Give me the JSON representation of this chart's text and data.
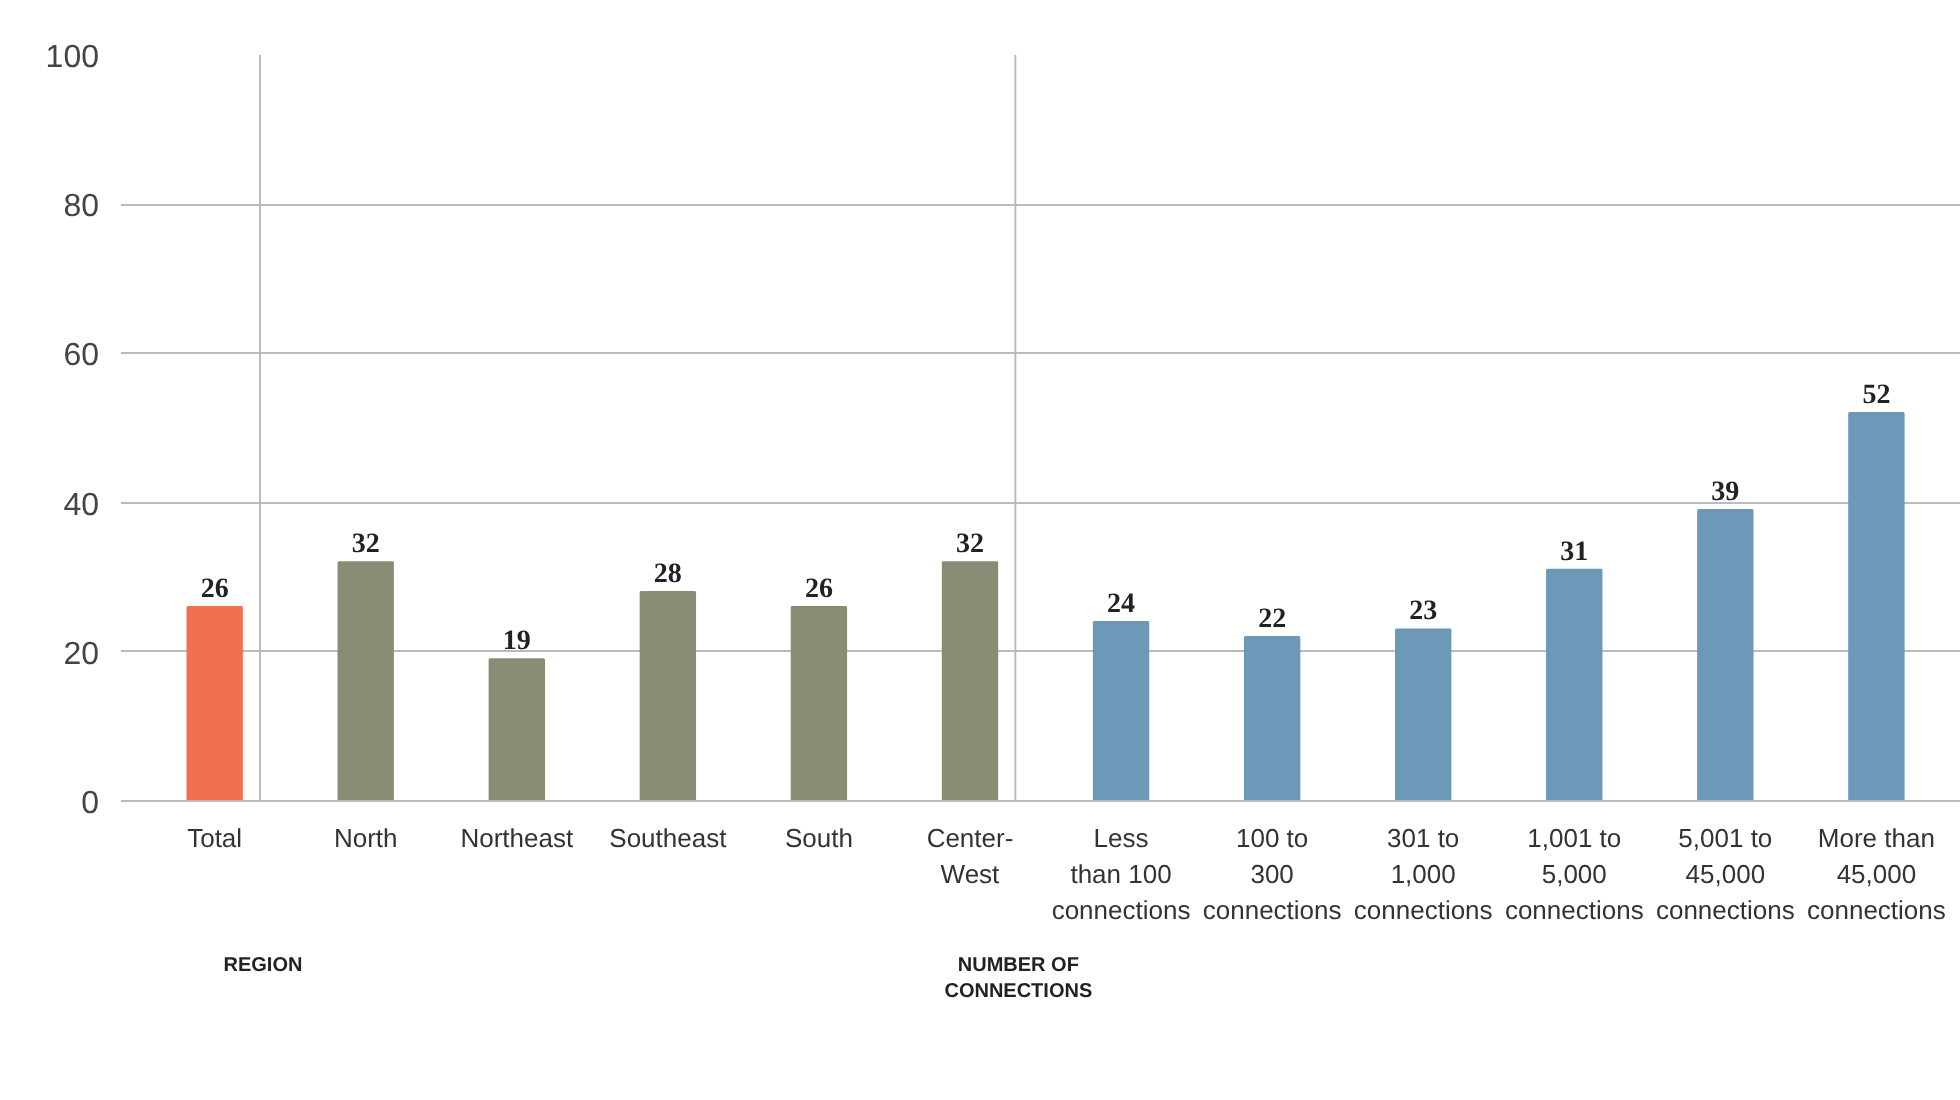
{
  "chart_data": {
    "type": "bar",
    "categories": [
      "Total",
      "North",
      "Northeast",
      "Southeast",
      "South",
      "Center-\nWest",
      "Less\nthan 100\nconnections",
      "100 to\n300\nconnections",
      "301 to\n1,000\nconnections",
      "1,001 to\n5,000\nconnections",
      "5,001 to\n45,000\nconnections",
      "More than\n45,000\nconnections"
    ],
    "values": [
      26,
      32,
      19,
      28,
      26,
      32,
      24,
      22,
      23,
      31,
      39,
      52
    ],
    "colors": [
      "#f07050",
      "#8a8c76",
      "#8a8c76",
      "#8a8c76",
      "#8a8c76",
      "#8a8c76",
      "#6d98b8",
      "#6d98b8",
      "#6d98b8",
      "#6d98b8",
      "#6d98b8",
      "#6d98b8"
    ],
    "ylim": [
      0,
      100
    ],
    "yticks": [
      0,
      20,
      40,
      60,
      80,
      100
    ],
    "grid": "y",
    "data_labels": true,
    "annotations": [
      "REGION",
      "NUMBER OF\nCONNECTIONS"
    ]
  }
}
